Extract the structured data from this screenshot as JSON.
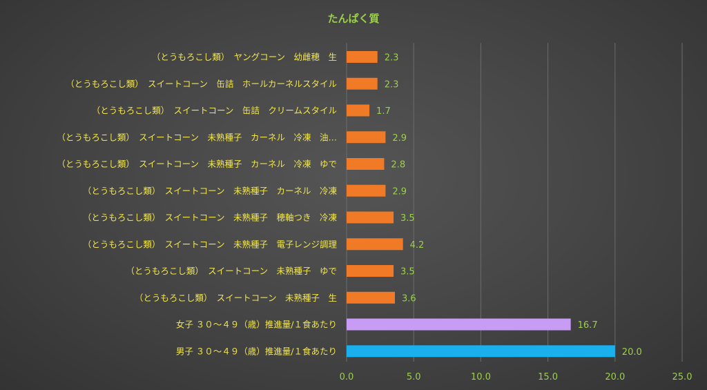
{
  "chart_data": {
    "type": "bar",
    "orientation": "horizontal",
    "title": "たんぱく質",
    "categories": [
      "（とうもろこし類）　ヤングコーン　幼雌穂　生",
      "（とうもろこし類）　スイートコーン　缶詰　ホールカーネルスタイル",
      "（とうもろこし類）　スイートコーン　缶詰　クリームスタイル",
      "（とうもろこし類）　スイートコーン　未熟種子　カーネル　冷凍　油…",
      "（とうもろこし類）　スイートコーン　未熟種子　カーネル　冷凍　ゆで",
      "（とうもろこし類）　スイートコーン　未熟種子　カーネル　冷凍",
      "（とうもろこし類）　スイートコーン　未熟種子　穂軸つき　冷凍",
      "（とうもろこし類）　スイートコーン　未熟種子　電子レンジ調理",
      "（とうもろこし類）　スイートコーン　未熟種子　ゆで",
      "（とうもろこし類）　スイートコーン　未熟種子　生",
      "女子 ３０～４９（歳）推進量/１食あたり",
      "男子 ３０～４９（歳）推進量/１食あたり"
    ],
    "values": [
      2.3,
      2.3,
      1.7,
      2.9,
      2.8,
      2.9,
      3.5,
      4.2,
      3.5,
      3.6,
      16.7,
      20.0
    ],
    "value_labels": [
      "2.3",
      "2.3",
      "1.7",
      "2.9",
      "2.8",
      "2.9",
      "3.5",
      "4.2",
      "3.5",
      "3.6",
      "16.7",
      "20.0"
    ],
    "bar_colors": [
      "#f07a25",
      "#f07a25",
      "#f07a25",
      "#f07a25",
      "#f07a25",
      "#f07a25",
      "#f07a25",
      "#f07a25",
      "#f07a25",
      "#f07a25",
      "#c89cf4",
      "#1ab0ee"
    ],
    "xlim": [
      0,
      25
    ],
    "x_ticks": [
      "0.0",
      "5.0",
      "10.0",
      "15.0",
      "20.0",
      "25.0"
    ],
    "x_tick_values": [
      0,
      5,
      10,
      15,
      20,
      25
    ],
    "grid": true,
    "legend": "none"
  }
}
